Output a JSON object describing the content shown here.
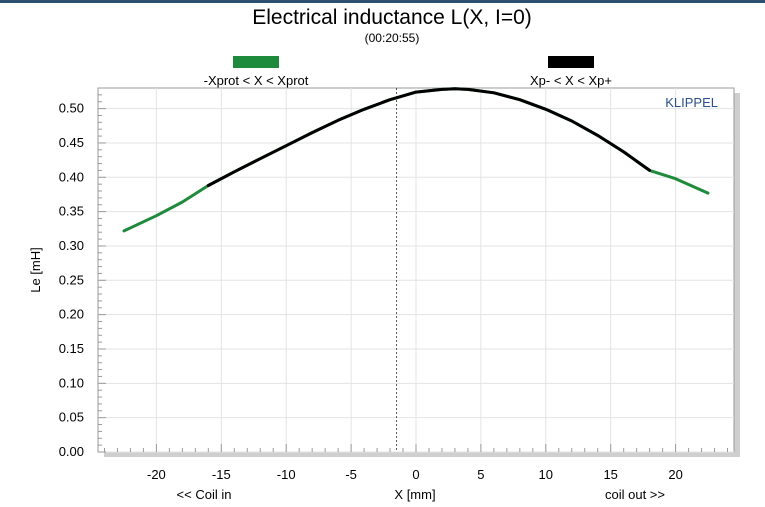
{
  "chart_data": {
    "type": "line",
    "title": "Electrical inductance L(X, I=0)",
    "subtitle": "(00:20:55)",
    "brand": "KLIPPEL",
    "xlabel": "X [mm]",
    "xlabel_left": "<< Coil in",
    "xlabel_right": "coil out >>",
    "ylabel": "Le [mH]",
    "xlim": [
      -24.5,
      24.5
    ],
    "ylim": [
      0.0,
      0.53
    ],
    "xticks": [
      "-20",
      "-15",
      "-10",
      "-5",
      "0",
      "5",
      "10",
      "15",
      "20"
    ],
    "yticks": [
      "0.00",
      "0.05",
      "0.10",
      "0.15",
      "0.20",
      "0.25",
      "0.30",
      "0.35",
      "0.40",
      "0.45",
      "0.50"
    ],
    "grid": true,
    "marker_line_x": -1.5,
    "legend": [
      {
        "label": "-Xprot < X < Xprot",
        "color": "#1e8a3c"
      },
      {
        "label": "Xp- < X < Xp+",
        "color": "#000000"
      }
    ],
    "series": [
      {
        "name": "-Xprot < X < Xprot",
        "color": "#1e8a3c",
        "x": [
          -22.5,
          -20,
          -18,
          -16,
          -14,
          -12,
          -10,
          -8,
          -6,
          -4,
          -2,
          0,
          2,
          3,
          4,
          6,
          8,
          10,
          12,
          14,
          16,
          18,
          20,
          22.5
        ],
        "y": [
          0.322,
          0.344,
          0.364,
          0.388,
          0.408,
          0.427,
          0.446,
          0.465,
          0.483,
          0.499,
          0.513,
          0.524,
          0.528,
          0.529,
          0.528,
          0.523,
          0.513,
          0.499,
          0.482,
          0.461,
          0.437,
          0.41,
          0.398,
          0.377
        ]
      },
      {
        "name": "Xp- < X < Xp+",
        "color": "#000000",
        "x": [
          -16,
          -14,
          -12,
          -10,
          -8,
          -6,
          -4,
          -2,
          0,
          2,
          3,
          4,
          6,
          8,
          10,
          12,
          14,
          16,
          18
        ],
        "y": [
          0.388,
          0.408,
          0.427,
          0.446,
          0.465,
          0.483,
          0.499,
          0.513,
          0.524,
          0.528,
          0.529,
          0.528,
          0.523,
          0.513,
          0.499,
          0.482,
          0.461,
          0.437,
          0.41
        ]
      }
    ]
  }
}
